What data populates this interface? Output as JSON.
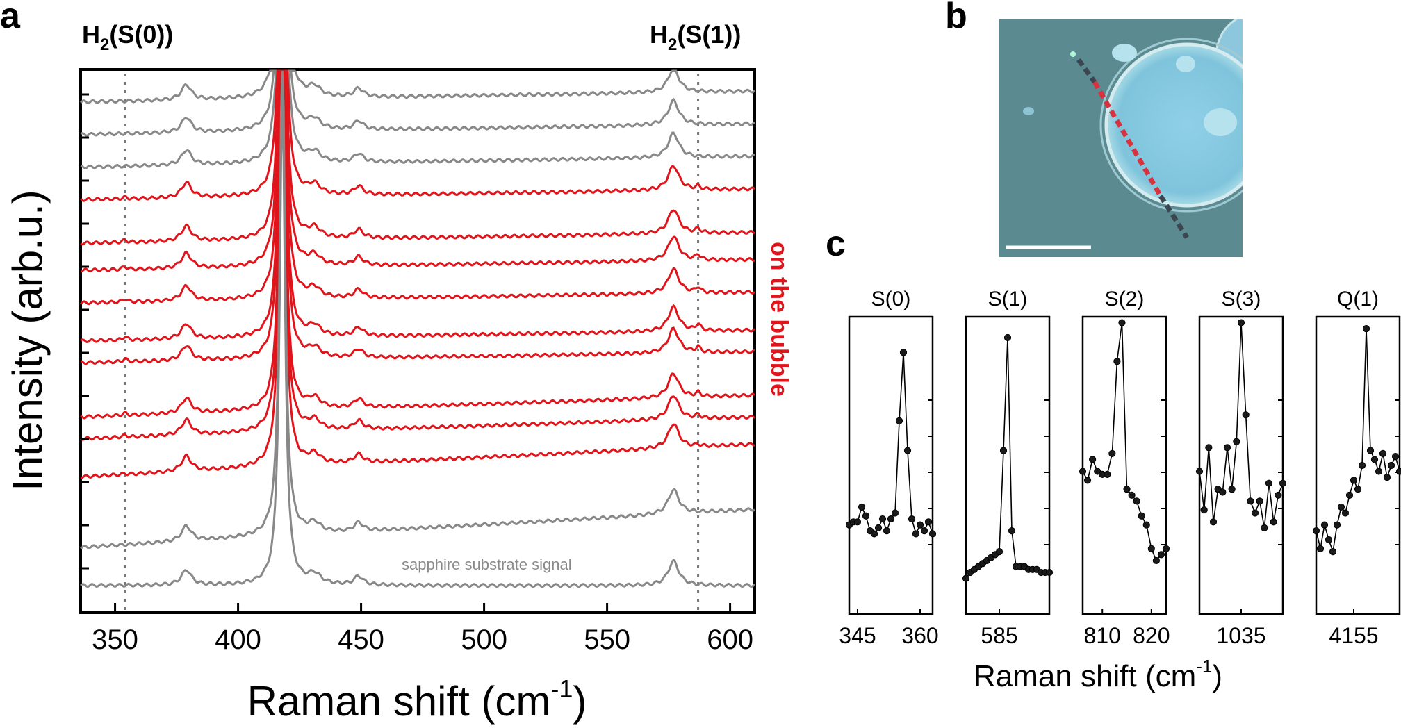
{
  "figure": {
    "panel_a_letter": "a",
    "panel_b_letter": "b",
    "panel_c_letter": "c"
  },
  "chart_data": [
    {
      "panel": "a",
      "type": "line",
      "xlabel_main": "Raman shift (cm",
      "xlabel_sup": "-1",
      "xlabel_end": ")",
      "ylabel": "Intensity (arb.u.)",
      "xlim": [
        336,
        610
      ],
      "xticks": [
        350,
        400,
        450,
        500,
        550,
        600
      ],
      "reference_lines": [
        {
          "x": 354,
          "label_main": "H",
          "label_sub": "2",
          "label_rest": "(S(0))"
        },
        {
          "x": 587,
          "label_main": "H",
          "label_sub": "2",
          "label_rest": "(S(1))"
        }
      ],
      "side_label": "on the bubble",
      "substrate_label": "sapphire substrate signal",
      "phonon_peaks": [
        379,
        418,
        431,
        449,
        577
      ],
      "series_colors": {
        "substrate": "#888888",
        "bubble": "#e0141a"
      },
      "series": [
        {
          "group": "substrate",
          "baseline": 0.94,
          "slope": 0.02,
          "h2": 0
        },
        {
          "group": "substrate",
          "baseline": 0.88,
          "slope": 0.02,
          "h2": 0
        },
        {
          "group": "substrate",
          "baseline": 0.82,
          "slope": 0.02,
          "h2": 0
        },
        {
          "group": "bubble",
          "baseline": 0.76,
          "slope": 0.02,
          "h2": 0.25
        },
        {
          "group": "bubble",
          "baseline": 0.68,
          "slope": 0.02,
          "h2": 0.35
        },
        {
          "group": "bubble",
          "baseline": 0.63,
          "slope": 0.02,
          "h2": 0.45
        },
        {
          "group": "bubble",
          "baseline": 0.57,
          "slope": 0.02,
          "h2": 0.45
        },
        {
          "group": "bubble",
          "baseline": 0.5,
          "slope": 0.02,
          "h2": 0.55
        },
        {
          "group": "bubble",
          "baseline": 0.46,
          "slope": 0.02,
          "h2": 0.45
        },
        {
          "group": "bubble",
          "baseline": 0.36,
          "slope": 0.04,
          "h2": 0.35
        },
        {
          "group": "bubble",
          "baseline": 0.32,
          "slope": 0.04,
          "h2": 0.3
        },
        {
          "group": "bubble",
          "baseline": 0.25,
          "slope": 0.06,
          "h2": 0.15
        },
        {
          "group": "substrate",
          "baseline": 0.12,
          "slope": 0.07,
          "h2": 0
        },
        {
          "group": "substrate",
          "baseline": 0.05,
          "slope": 0.0,
          "h2": 0
        }
      ]
    },
    {
      "panel": "b",
      "type": "image",
      "colors": {
        "background": "#5b8b91",
        "bubble": "#7fc4dc",
        "line_dark": "#3b4650",
        "line_red": "#d8323e",
        "scale_bar": "#ffffff"
      }
    },
    {
      "panel": "c",
      "type": "line",
      "xlabel_main": "Raman shift (cm",
      "xlabel_sup": "-1",
      "xlabel_end": ")",
      "subplots": [
        {
          "title": "S(0)",
          "xlim": [
            343,
            363
          ],
          "xticks": [
            345,
            360
          ],
          "x": [
            343,
            344,
            345,
            346,
            347,
            348,
            349,
            350,
            351,
            352,
            353,
            354,
            355,
            356,
            357,
            358,
            359,
            360,
            361,
            362,
            363
          ],
          "y": [
            0.3,
            0.31,
            0.31,
            0.36,
            0.33,
            0.28,
            0.27,
            0.29,
            0.32,
            0.28,
            0.32,
            0.34,
            0.65,
            0.88,
            0.55,
            0.32,
            0.27,
            0.3,
            0.28,
            0.31,
            0.27
          ]
        },
        {
          "title": "S(1)",
          "xlim": [
            577,
            597
          ],
          "xticks": [
            585
          ],
          "x": [
            577,
            578,
            579,
            580,
            581,
            582,
            583,
            584,
            585,
            586,
            587,
            588,
            589,
            590,
            591,
            592,
            593,
            594,
            595,
            596,
            597
          ],
          "y": [
            0.12,
            0.14,
            0.15,
            0.16,
            0.17,
            0.18,
            0.19,
            0.2,
            0.21,
            0.55,
            0.93,
            0.28,
            0.16,
            0.16,
            0.16,
            0.15,
            0.15,
            0.15,
            0.14,
            0.14,
            0.14
          ]
        },
        {
          "title": "S(2)",
          "xlim": [
            806,
            823
          ],
          "xticks": [
            810,
            820
          ],
          "x": [
            806,
            807,
            808,
            809,
            810,
            811,
            812,
            813,
            814,
            815,
            816,
            817,
            818,
            819,
            820,
            821,
            822,
            823
          ],
          "y": [
            0.48,
            0.45,
            0.52,
            0.48,
            0.47,
            0.47,
            0.54,
            0.85,
            0.98,
            0.42,
            0.4,
            0.38,
            0.33,
            0.3,
            0.22,
            0.18,
            0.2,
            0.22
          ]
        },
        {
          "title": "S(3)",
          "xlim": [
            1026,
            1044
          ],
          "xticks": [
            1035
          ],
          "x": [
            1026,
            1027,
            1028,
            1029,
            1030,
            1031,
            1032,
            1033,
            1034,
            1035,
            1036,
            1037,
            1038,
            1039,
            1040,
            1041,
            1042,
            1043,
            1044
          ],
          "y": [
            0.48,
            0.35,
            0.56,
            0.31,
            0.42,
            0.41,
            0.56,
            0.42,
            0.58,
            0.98,
            0.67,
            0.38,
            0.34,
            0.38,
            0.29,
            0.44,
            0.31,
            0.4,
            0.44
          ]
        },
        {
          "title": "Q(1)",
          "xlim": [
            4146,
            4166
          ],
          "xticks": [
            4155
          ],
          "x": [
            4146,
            4147,
            4148,
            4149,
            4150,
            4151,
            4152,
            4153,
            4154,
            4155,
            4156,
            4157,
            4158,
            4159,
            4160,
            4161,
            4162,
            4163,
            4164,
            4165,
            4166
          ],
          "y": [
            0.28,
            0.22,
            0.3,
            0.25,
            0.21,
            0.3,
            0.36,
            0.34,
            0.4,
            0.45,
            0.42,
            0.5,
            0.96,
            0.55,
            0.52,
            0.48,
            0.54,
            0.46,
            0.5,
            0.53,
            0.48
          ]
        }
      ]
    }
  ]
}
